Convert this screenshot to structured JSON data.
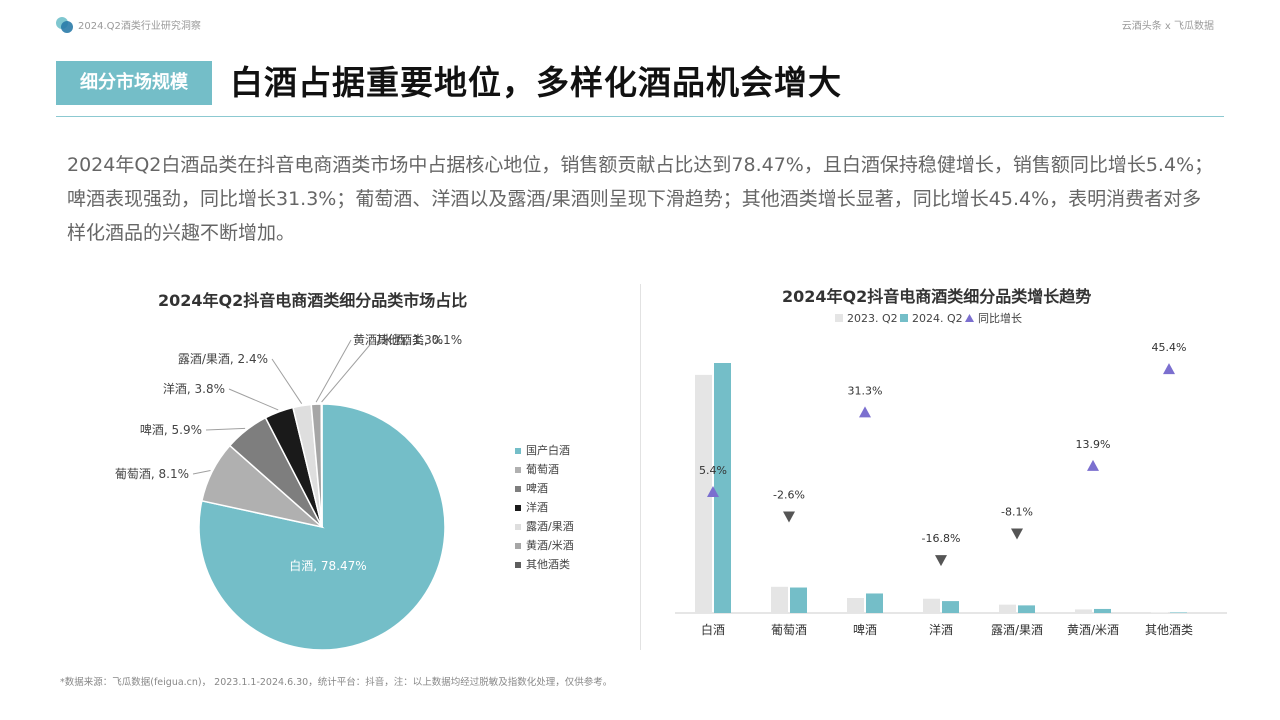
{
  "header": {
    "report_name": "2024.Q2酒类行业研究洞察",
    "partners": "云酒头条 x 飞瓜数据",
    "section_tag": "细分市场规模",
    "headline": "白酒占据重要地位，多样化酒品机会增大",
    "accent_color": "#74bec8"
  },
  "summary": "2024年Q2白酒品类在抖音电商酒类市场中占据核心地位，销售额贡献占比达到78.47%，且白酒保持稳健增长，销售额同比增长5.4%；啤酒表现强劲，同比增长31.3%；葡萄酒、洋酒以及露酒/果酒则呈现下滑趋势；其他酒类增长显著，同比增长45.4%，表明消费者对多样化酒品的兴趣不断增加。",
  "footnote": "*数据来源：飞瓜数据(feigua.cn)， 2023.1.1-2024.6.30，统计平台：抖音，注：以上数据均经过脱敏及指数化处理，仅供参考。",
  "chart_data": [
    {
      "type": "pie",
      "title": "2024年Q2抖音电商酒类细分品类市场占比",
      "slices": [
        {
          "label": "白酒",
          "value": 78.47,
          "display": "白酒, 78.47%",
          "color": "#74bec8"
        },
        {
          "label": "葡萄酒",
          "value": 8.1,
          "display": "葡萄酒, 8.1%",
          "color": "#b0b0b0"
        },
        {
          "label": "啤酒",
          "value": 5.9,
          "display": "啤酒, 5.9%",
          "color": "#7e7e7e"
        },
        {
          "label": "洋酒",
          "value": 3.8,
          "display": "洋酒, 3.8%",
          "color": "#1a1a1a"
        },
        {
          "label": "露酒/果酒",
          "value": 2.4,
          "display": "露酒/果酒, 2.4%",
          "color": "#dedede"
        },
        {
          "label": "黄酒/米酒",
          "value": 1.3,
          "display": "黄酒/米酒, 1.3%",
          "color": "#a6a6a6"
        },
        {
          "label": "其他酒类",
          "value": 0.1,
          "display": "其他酒类, 0.1%",
          "color": "#5e5e5e"
        }
      ],
      "legend": {
        "position": "right",
        "items": [
          {
            "label": "国产白酒",
            "color": "#74bec8"
          },
          {
            "label": "葡萄酒",
            "color": "#b0b0b0"
          },
          {
            "label": "啤酒",
            "color": "#7e7e7e"
          },
          {
            "label": "洋酒",
            "color": "#1a1a1a"
          },
          {
            "label": "露酒/果酒",
            "color": "#dedede"
          },
          {
            "label": "黄酒/米酒",
            "color": "#a6a6a6"
          },
          {
            "label": "其他酒类",
            "color": "#5e5e5e"
          }
        ]
      }
    },
    {
      "type": "bar",
      "title": "2024年Q2抖音电商酒类细分品类增长趋势",
      "categories": [
        "白酒",
        "葡萄酒",
        "啤酒",
        "洋酒",
        "露酒/果酒",
        "黄酒/米酒",
        "其他酒类"
      ],
      "series": [
        {
          "name": "2023. Q2",
          "color": "#e5e5e5",
          "values": [
            100,
            11,
            6.3,
            6,
            3.5,
            1.5,
            0.1
          ]
        },
        {
          "name": "2024. Q2",
          "color": "#74bec8",
          "values": [
            105,
            10.7,
            8.2,
            5,
            3.2,
            1.7,
            0.15
          ]
        }
      ],
      "growth": {
        "name": "同比增长",
        "values": [
          5.4,
          -2.6,
          31.3,
          -16.8,
          -8.1,
          13.9,
          45.4
        ],
        "labels": [
          "5.4%",
          "-2.6%",
          "31.3%",
          "-16.8%",
          "-8.1%",
          "13.9%",
          "45.4%"
        ],
        "up_color": "#7b6fcf",
        "down_color": "#555555"
      },
      "legend_position": "top",
      "grid": false
    }
  ]
}
